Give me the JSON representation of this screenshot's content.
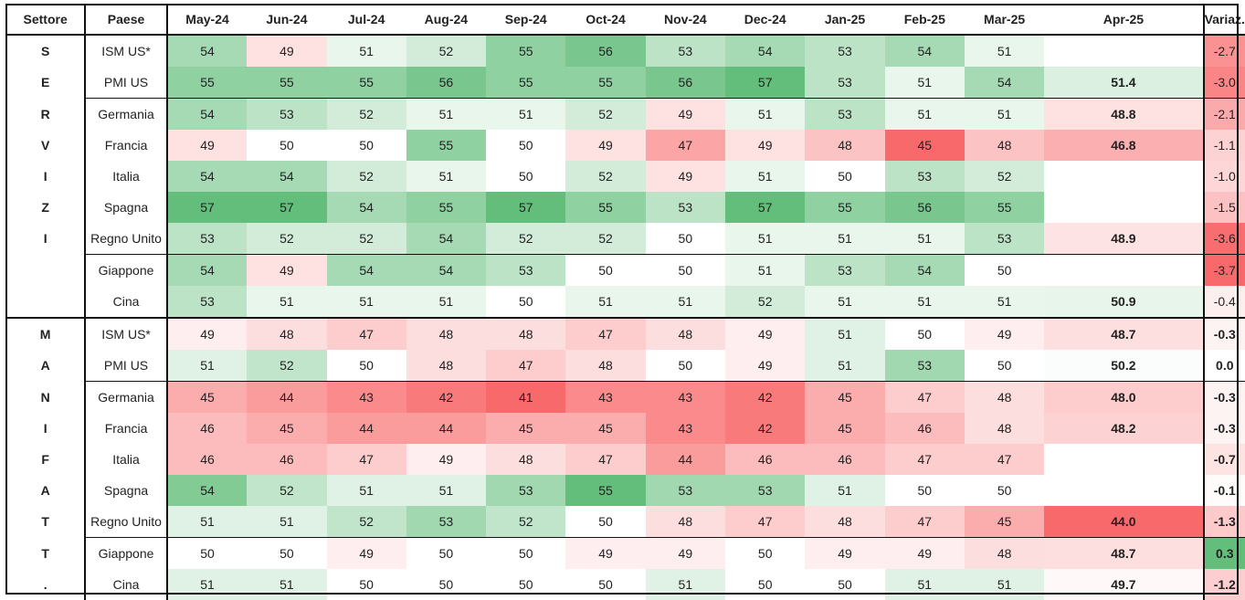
{
  "chart_data": {
    "type": "table",
    "columns": [
      "Settore",
      "Paese",
      "May-24",
      "Jun-24",
      "Jul-24",
      "Aug-24",
      "Sep-24",
      "Oct-24",
      "Nov-24",
      "Dec-24",
      "Jan-25",
      "Feb-25",
      "Mar-25",
      "Apr-25",
      "Variaz."
    ],
    "groups": [
      {
        "letters": [
          "S",
          "E",
          "R",
          "V",
          "I",
          "Z",
          "I",
          "",
          ""
        ],
        "rows": [
          {
            "paese": "ISM US*",
            "values": [
              54,
              49,
              51,
              52,
              55,
              56,
              53,
              54,
              53,
              54,
              51
            ],
            "apr": "",
            "var": "-2.7"
          },
          {
            "paese": "PMI US",
            "values": [
              55,
              55,
              55,
              56,
              55,
              55,
              56,
              57,
              53,
              51,
              54
            ],
            "apr": "51.4",
            "var": "-3.0"
          },
          {
            "paese": "Germania",
            "values": [
              54,
              53,
              52,
              51,
              51,
              52,
              49,
              51,
              53,
              51,
              51
            ],
            "apr": "48.8",
            "var": "-2.1"
          },
          {
            "paese": "Francia",
            "values": [
              49,
              50,
              50,
              55,
              50,
              49,
              47,
              49,
              48,
              45,
              48
            ],
            "apr": "46.8",
            "var": "-1.1"
          },
          {
            "paese": "Italia",
            "values": [
              54,
              54,
              52,
              51,
              50,
              52,
              49,
              51,
              50,
              53,
              52
            ],
            "apr": "",
            "var": "-1.0"
          },
          {
            "paese": "Spagna",
            "values": [
              57,
              57,
              54,
              55,
              57,
              55,
              53,
              57,
              55,
              56,
              55
            ],
            "apr": "",
            "var": "-1.5"
          },
          {
            "paese": "Regno Unito",
            "values": [
              53,
              52,
              52,
              54,
              52,
              52,
              50,
              51,
              51,
              51,
              53
            ],
            "apr": "48.9",
            "var": "-3.6"
          },
          {
            "paese": "Giappone",
            "values": [
              54,
              49,
              54,
              54,
              53,
              50,
              50,
              51,
              53,
              54,
              50
            ],
            "apr": "",
            "var": "-3.7"
          },
          {
            "paese": "Cina",
            "values": [
              53,
              51,
              51,
              51,
              50,
              51,
              51,
              52,
              51,
              51,
              51
            ],
            "apr": "50.9",
            "var": "-0.4"
          }
        ]
      },
      {
        "letters": [
          "M",
          "A",
          "N",
          "I",
          "F",
          "A",
          "T",
          "T",
          "."
        ],
        "rows": [
          {
            "paese": "ISM US*",
            "values": [
              49,
              48,
              47,
              48,
              48,
              47,
              48,
              49,
              51,
              50,
              49
            ],
            "apr": "48.7",
            "var": "-0.3"
          },
          {
            "paese": "PMI US",
            "values": [
              51,
              52,
              50,
              48,
              47,
              48,
              50,
              49,
              51,
              53,
              50
            ],
            "apr": "50.2",
            "var": "0.0"
          },
          {
            "paese": "Germania",
            "values": [
              45,
              44,
              43,
              42,
              41,
              43,
              43,
              42,
              45,
              47,
              48
            ],
            "apr": "48.0",
            "var": "-0.3"
          },
          {
            "paese": "Francia",
            "values": [
              46,
              45,
              44,
              44,
              45,
              45,
              43,
              42,
              45,
              46,
              48
            ],
            "apr": "48.2",
            "var": "-0.3"
          },
          {
            "paese": "Italia",
            "values": [
              46,
              46,
              47,
              49,
              48,
              47,
              44,
              46,
              46,
              47,
              47
            ],
            "apr": "",
            "var": "-0.7"
          },
          {
            "paese": "Spagna",
            "values": [
              54,
              52,
              51,
              51,
              53,
              55,
              53,
              53,
              51,
              50,
              50
            ],
            "apr": "",
            "var": "-0.1"
          },
          {
            "paese": "Regno Unito",
            "values": [
              51,
              51,
              52,
              53,
              52,
              50,
              48,
              47,
              48,
              47,
              45
            ],
            "apr": "44.0",
            "var": "-1.3"
          },
          {
            "paese": "Giappone",
            "values": [
              50,
              50,
              49,
              50,
              50,
              49,
              49,
              50,
              49,
              49,
              48
            ],
            "apr": "48.7",
            "var": "0.3"
          },
          {
            "paese": "Cina",
            "values": [
              51,
              51,
              50,
              50,
              50,
              50,
              51,
              50,
              50,
              51,
              51
            ],
            "apr": "49.7",
            "var": "-1.2"
          }
        ]
      }
    ]
  }
}
